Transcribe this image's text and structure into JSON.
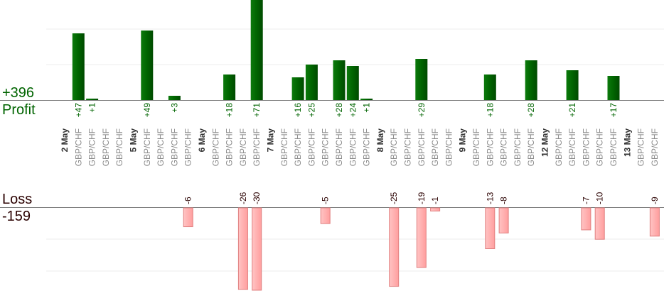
{
  "summary": {
    "profit_total": "+396",
    "profit_label": "Profit",
    "loss_label": "Loss",
    "loss_total": "-159"
  },
  "colors": {
    "profit_bar": "#006400",
    "profit_text": "#006400",
    "loss_bar": "#ffb3b3",
    "loss_bar_border": "#e08080",
    "loss_text": "#2a0000"
  },
  "chart_data": {
    "type": "bar",
    "grid": true,
    "legend": "none",
    "dates": [
      {
        "label": "2 May",
        "slot": 0
      },
      {
        "label": "5 May",
        "slot": 5
      },
      {
        "label": "6 May",
        "slot": 10
      },
      {
        "label": "7 May",
        "slot": 15
      },
      {
        "label": "8 May",
        "slot": 23
      },
      {
        "label": "9 May",
        "slot": 29
      },
      {
        "label": "12 May",
        "slot": 35
      },
      {
        "label": "13 May",
        "slot": 41
      }
    ],
    "pair_slots": [
      1,
      2,
      3,
      4,
      6,
      7,
      8,
      9,
      11,
      12,
      13,
      14,
      16,
      17,
      18,
      19,
      20,
      21,
      22,
      24,
      25,
      26,
      27,
      28,
      30,
      31,
      32,
      33,
      34,
      36,
      37,
      38,
      39,
      40,
      42,
      43
    ],
    "pair_label": "GBP/CHF",
    "profit": {
      "series_label": "Profit",
      "total": 396,
      "ylim": [
        0,
        75
      ],
      "trades": [
        {
          "slot": 1,
          "value": 47,
          "label": "+47"
        },
        {
          "slot": 2,
          "value": 1,
          "label": "+1"
        },
        {
          "slot": 6,
          "value": 49,
          "label": "+49"
        },
        {
          "slot": 8,
          "value": 3,
          "label": "+3"
        },
        {
          "slot": 12,
          "value": 18,
          "label": "+18"
        },
        {
          "slot": 14,
          "value": 71,
          "label": "+71"
        },
        {
          "slot": 17,
          "value": 16,
          "label": "+16"
        },
        {
          "slot": 18,
          "value": 25,
          "label": "+25"
        },
        {
          "slot": 20,
          "value": 28,
          "label": "+28"
        },
        {
          "slot": 21,
          "value": 24,
          "label": "+24"
        },
        {
          "slot": 22,
          "value": 1,
          "label": "+1"
        },
        {
          "slot": 26,
          "value": 29,
          "label": "+29"
        },
        {
          "slot": 31,
          "value": 18,
          "label": "+18"
        },
        {
          "slot": 34,
          "value": 28,
          "label": "+28"
        },
        {
          "slot": 37,
          "value": 21,
          "label": "+21"
        },
        {
          "slot": 40,
          "value": 17,
          "label": "+17"
        }
      ]
    },
    "loss": {
      "series_label": "Loss",
      "total": -159,
      "ylim": [
        -26,
        0
      ],
      "trades": [
        {
          "slot": 9,
          "value": -6,
          "label": "-6"
        },
        {
          "slot": 13,
          "value": -26,
          "label": "-26"
        },
        {
          "slot": 14,
          "value": -30,
          "label": "-30"
        },
        {
          "slot": 19,
          "value": -5,
          "label": "-5"
        },
        {
          "slot": 24,
          "value": -25,
          "label": "-25"
        },
        {
          "slot": 26,
          "value": -19,
          "label": "-19"
        },
        {
          "slot": 27,
          "value": -1,
          "label": "-1"
        },
        {
          "slot": 31,
          "value": -13,
          "label": "-13"
        },
        {
          "slot": 32,
          "value": -8,
          "label": "-8"
        },
        {
          "slot": 38,
          "value": -7,
          "label": "-7"
        },
        {
          "slot": 39,
          "value": -10,
          "label": "-10"
        },
        {
          "slot": 43,
          "value": -9,
          "label": "-9"
        }
      ]
    }
  }
}
